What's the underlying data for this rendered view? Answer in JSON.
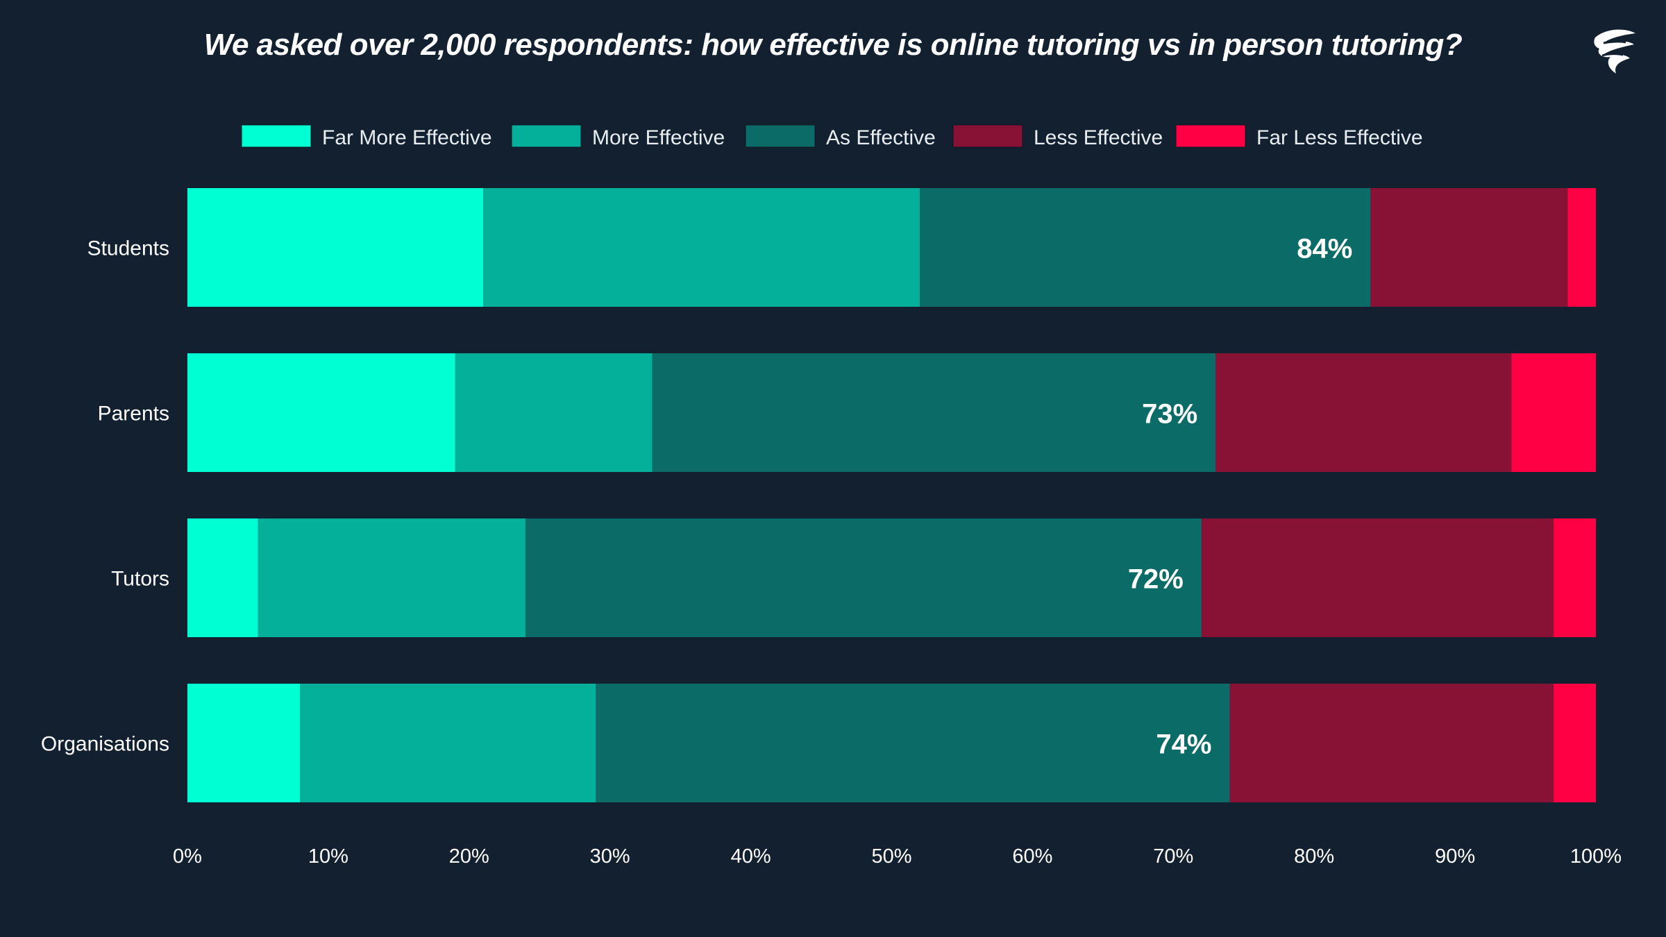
{
  "chart_data": {
    "type": "bar",
    "orientation": "horizontal",
    "stacked": true,
    "title": "We asked over 2,000 respondents: how effective is online tutoring vs in person tutoring?",
    "categories": [
      "Students",
      "Parents",
      "Tutors",
      "Organisations"
    ],
    "series": [
      {
        "name": "Far More Effective",
        "color": "#00ffd2",
        "values": [
          21,
          19,
          5,
          8
        ]
      },
      {
        "name": "More Effective",
        "color": "#05b09a",
        "values": [
          31,
          14,
          19,
          21
        ]
      },
      {
        "name": "As Effective",
        "color": "#0b6b66",
        "values": [
          32,
          40,
          48,
          45
        ]
      },
      {
        "name": "Less Effective",
        "color": "#881235",
        "values": [
          14,
          21,
          25,
          23
        ]
      },
      {
        "name": "Far Less Effective",
        "color": "#ff0044",
        "values": [
          2,
          6,
          3,
          3
        ]
      }
    ],
    "annotations": [
      "84%",
      "73%",
      "72%",
      "74%"
    ],
    "xlim": [
      0,
      100
    ],
    "xticks": [
      "0%",
      "10%",
      "20%",
      "30%",
      "40%",
      "50%",
      "60%",
      "70%",
      "80%",
      "90%",
      "100%"
    ],
    "legend_position": "top",
    "grid": false
  }
}
